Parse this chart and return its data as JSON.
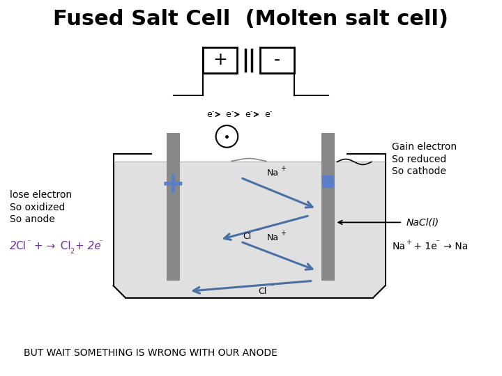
{
  "title": "Fused Salt Cell  (Molten salt cell)",
  "title_fontsize": 22,
  "bg_color": "#ffffff",
  "liquid_color": "#e0e0e0",
  "electrode_color": "#888888",
  "blue_color": "#5b7fc5",
  "arrow_color": "#4a6fa5",
  "text_color": "#000000",
  "purple_color": "#7030a0",
  "left_labels": [
    "lose electron",
    "So oxidized",
    "So anode"
  ],
  "right_labels": [
    "Gain electron",
    "So reduced",
    "So cathode"
  ],
  "bottom_text": "BUT WAIT SOMETHING IS WRONG WITH OUR ANODE",
  "nacl_label": "NaCl(l)"
}
